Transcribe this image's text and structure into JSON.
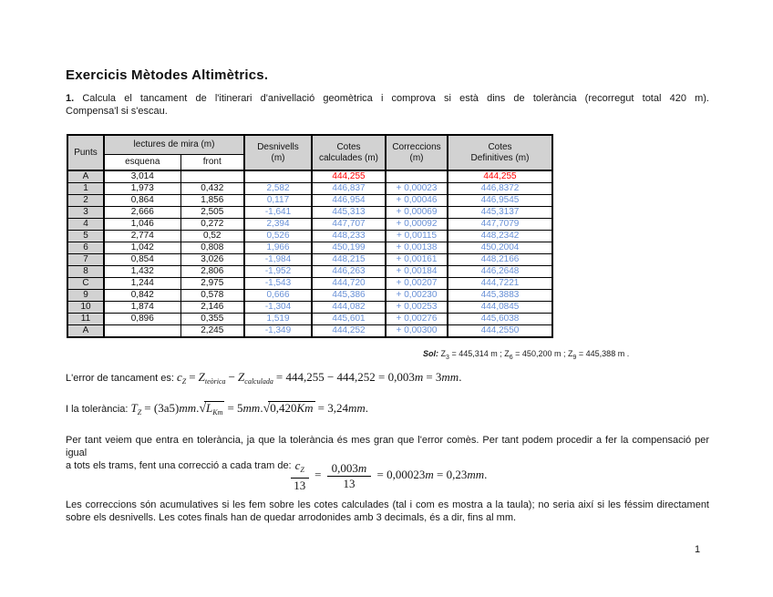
{
  "colors": {
    "accent_blue": "#6991D7",
    "accent_red": "#FF0000",
    "header_gray": "#D2D2D2"
  },
  "title": "Exercicis Mètodes Altimètrics.",
  "intro": {
    "number": "1.",
    "line1": "Calcula el tancament de l'itinerari d'anivellació geomètrica i comprova si està dins de tolerància (recorregut total 420 m).",
    "line2": "Compensa'l si s'escau."
  },
  "table": {
    "headers": {
      "punts": "Punts",
      "lectures": "lectures de mira (m)",
      "esquena": "esquena",
      "front": "front",
      "desnivells_l1": "Desnivells",
      "desnivells_l2": "(m)",
      "calculades_l1": "Cotes",
      "calculades_l2": "calculades (m)",
      "correccions_l1": "Correccions",
      "correccions_l2": "(m)",
      "definitives_l1": "Cotes",
      "definitives_l2": "Definitives (m)"
    },
    "rows": [
      {
        "punt": "A",
        "esquena": "3,014",
        "front": "",
        "desnivell": "",
        "cota_calc": "444,255",
        "correccio": "",
        "cota_def": "444,255",
        "red": true
      },
      {
        "punt": "1",
        "esquena": "1,973",
        "front": "0,432",
        "desnivell": "2,582",
        "cota_calc": "446,837",
        "correccio": "+ 0,00023",
        "cota_def": "446,8372"
      },
      {
        "punt": "2",
        "esquena": "0,864",
        "front": "1,856",
        "desnivell": "0,117",
        "cota_calc": "446,954",
        "correccio": "+ 0,00046",
        "cota_def": "446,9545"
      },
      {
        "punt": "3",
        "esquena": "2,666",
        "front": "2,505",
        "desnivell": "-1,641",
        "cota_calc": "445,313",
        "correccio": "+ 0,00069",
        "cota_def": "445,3137"
      },
      {
        "punt": "4",
        "esquena": "1,046",
        "front": "0,272",
        "desnivell": "2,394",
        "cota_calc": "447,707",
        "correccio": "+ 0,00092",
        "cota_def": "447,7079"
      },
      {
        "punt": "5",
        "esquena": "2,774",
        "front": "0,52",
        "desnivell": "0,526",
        "cota_calc": "448,233",
        "correccio": "+ 0,00115",
        "cota_def": "448,2342"
      },
      {
        "punt": "6",
        "esquena": "1,042",
        "front": "0,808",
        "desnivell": "1,966",
        "cota_calc": "450,199",
        "correccio": "+ 0,00138",
        "cota_def": "450,2004"
      },
      {
        "punt": "7",
        "esquena": "0,854",
        "front": "3,026",
        "desnivell": "-1,984",
        "cota_calc": "448,215",
        "correccio": "+ 0,00161",
        "cota_def": "448,2166"
      },
      {
        "punt": "8",
        "esquena": "1,432",
        "front": "2,806",
        "desnivell": "-1,952",
        "cota_calc": "446,263",
        "correccio": "+ 0,00184",
        "cota_def": "446,2648"
      },
      {
        "punt": "C",
        "esquena": "1,244",
        "front": "2,975",
        "desnivell": "-1,543",
        "cota_calc": "444,720",
        "correccio": "+ 0,00207",
        "cota_def": "444,7221"
      },
      {
        "punt": "9",
        "esquena": "0,842",
        "front": "0,578",
        "desnivell": "0,666",
        "cota_calc": "445,386",
        "correccio": "+ 0,00230",
        "cota_def": "445,3883"
      },
      {
        "punt": "10",
        "esquena": "1,874",
        "front": "2,146",
        "desnivell": "-1,304",
        "cota_calc": "444,082",
        "correccio": "+ 0,00253",
        "cota_def": "444,0845"
      },
      {
        "punt": "11",
        "esquena": "0,896",
        "front": "0,355",
        "desnivell": "1,519",
        "cota_calc": "445,601",
        "correccio": "+ 0,00276",
        "cota_def": "445,6038"
      },
      {
        "punt": "A",
        "esquena": "",
        "front": "2,245",
        "desnivell": "-1,349",
        "cota_calc": "444,252",
        "correccio": "+ 0,00300",
        "cota_def": "444,2550"
      }
    ]
  },
  "solution_note": {
    "prefix": "Sol:",
    "z1": "Z",
    "z1_sub": "3",
    "v1": "= 445,314 m ;",
    "z2": "Z",
    "z2_sub": "6",
    "v2": "= 450,200 m ;",
    "z3": "Z",
    "z3_sub": "9",
    "v3": "= 445,388 m ."
  },
  "error_line": {
    "label": "L'error de tancament es:",
    "var1": "c",
    "var1_sub": "Z",
    "eq": "=",
    "var2": "Z",
    "var2_sub": "teòrica",
    "op": "−",
    "var3": "Z",
    "var3_sub": "calculada",
    "expr": "= 444,255 − 444,252 = 0,003",
    "unit1": "m",
    "expr2": "= 3",
    "unit2": "mm",
    "period": "."
  },
  "tolerance_line": {
    "label": "I la tolerància:",
    "var": "T",
    "var_sub": "Z",
    "expr1": "= (3a5)",
    "unit1": "mm",
    "dot1": ".",
    "sqrt1": "√",
    "rad1_var": "L",
    "rad1_sub": "Km",
    "expr2": "= 5",
    "unit2": "mm",
    "dot2": ".",
    "sqrt2": "√",
    "rad2": "0,420",
    "rad2_unit": "Km",
    "expr3": "= 3,24",
    "unit3": "mm",
    "period": "."
  },
  "tolerance_paragraph": {
    "line1": "Per tant veiem que entra en tolerància, ja que la tolerància és mes gran que l'error comès. Per tant podem procedir a fer la compensació per igual",
    "line2": "a tots els trams, fent una correcció a cada tram de:"
  },
  "compensation_formula": {
    "num1_var": "c",
    "num1_sub": "Z",
    "den1": "13",
    "eq1": "=",
    "num2": "0,003",
    "num2_unit": "m",
    "den2": "13",
    "eq2": "= 0,00023",
    "unit2": "m",
    "eq3": "= 0,23",
    "unit3": "mm",
    "period": "."
  },
  "corrections_paragraph": {
    "line1": "Les correccions són acumulatives si les fem sobre les cotes calculades (tal i com es mostra a la taula); no seria així si les féssim directament",
    "line2": "sobre els desnivells. Les cotes finals han de quedar arrodonides amb 3 decimals, és a dir, fins al mm."
  },
  "page_number": "1"
}
